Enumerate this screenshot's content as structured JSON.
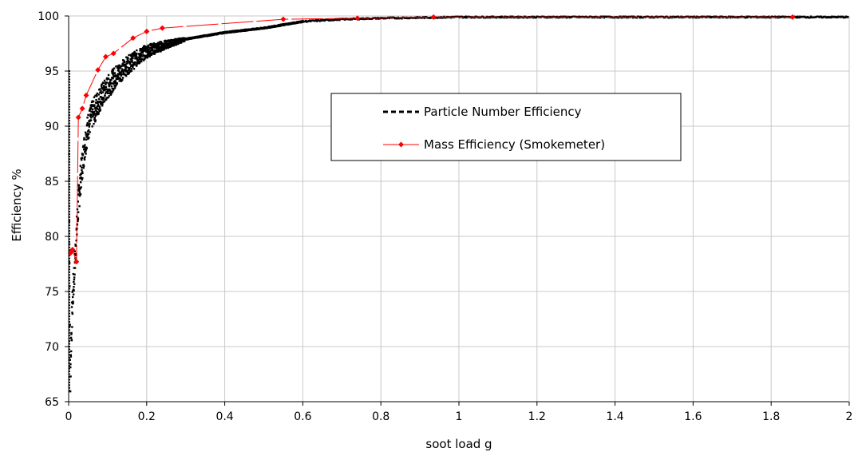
{
  "chart_data": {
    "type": "scatter",
    "xlabel": "soot load g",
    "ylabel": "Efficiency %",
    "xlim": [
      0,
      2
    ],
    "ylim": [
      65,
      100
    ],
    "x_ticks": [
      "0",
      "0.2",
      "0.4",
      "0.6",
      "0.8",
      "1",
      "1.2",
      "1.4",
      "1.6",
      "1.8",
      "2"
    ],
    "y_ticks": [
      "65",
      "70",
      "75",
      "80",
      "85",
      "90",
      "95",
      "100"
    ],
    "grid": true,
    "legend_position": "center-right",
    "series": [
      {
        "name": "Particle Number Efficiency",
        "style": "dense black dotted",
        "color": "#000000",
        "x": [
          0.0,
          0.002,
          0.004,
          0.006,
          0.008,
          0.01,
          0.015,
          0.02,
          0.025,
          0.03,
          0.04,
          0.05,
          0.06,
          0.08,
          0.1,
          0.12,
          0.15,
          0.18,
          0.2,
          0.25,
          0.3,
          0.4,
          0.5,
          0.55,
          0.6,
          0.7,
          0.8,
          0.9,
          1.0,
          1.2,
          1.4,
          1.6,
          1.8,
          2.0
        ],
        "y": [
          95.0,
          80.0,
          66.0,
          70.0,
          72.0,
          74.0,
          77.0,
          80.0,
          83.0,
          85.0,
          88.0,
          90.0,
          91.0,
          92.5,
          93.5,
          94.5,
          95.5,
          96.3,
          96.8,
          97.4,
          97.9,
          98.5,
          98.9,
          99.2,
          99.5,
          99.7,
          99.8,
          99.85,
          99.9,
          99.9,
          99.9,
          99.9,
          99.9,
          99.9
        ]
      },
      {
        "name": "Mass Efficiency (Smokemeter)",
        "style": "red line with diamond markers",
        "color": "#ff0000",
        "x": [
          0.005,
          0.01,
          0.02,
          0.025,
          0.035,
          0.045,
          0.075,
          0.095,
          0.115,
          0.165,
          0.2,
          0.24,
          0.55,
          0.74,
          0.935,
          1.855
        ],
        "y": [
          78.5,
          78.8,
          77.7,
          90.8,
          91.6,
          92.8,
          95.1,
          96.3,
          96.6,
          98.0,
          98.6,
          98.9,
          99.7,
          99.8,
          99.9,
          99.9
        ]
      }
    ]
  }
}
